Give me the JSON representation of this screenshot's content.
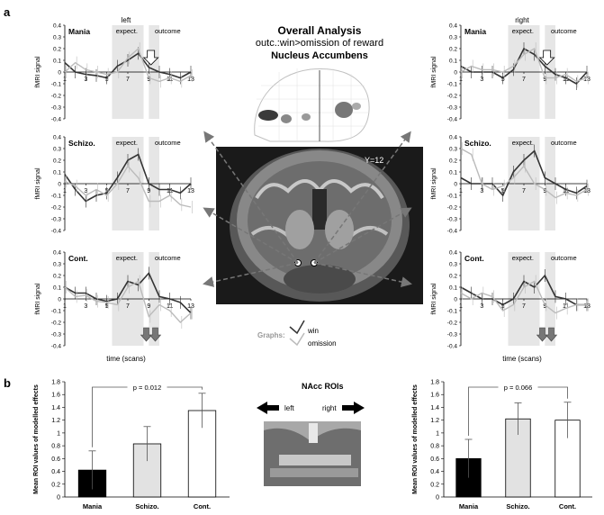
{
  "panel_a_label": "a",
  "panel_b_label": "b",
  "center": {
    "title": "Overall Analysis",
    "subtitle": "outc.:win>omission of reward",
    "region": "Nucleus Accumbens",
    "slice_label": "Y=12",
    "legend_title": "Graphs:",
    "legend_win": "win",
    "legend_omission": "omission",
    "x_axis_title": "time (scans)"
  },
  "side_labels": {
    "left": "left",
    "right": "right"
  },
  "band_labels": {
    "expect": "expect.",
    "outcome": "outcome"
  },
  "line_y_axis": {
    "label": "fMRI signal",
    "ticks": [
      "0.4",
      "0.3",
      "0.2",
      "0.1",
      "0",
      "-0.1",
      "-0.2",
      "-0.3",
      "-0.4"
    ],
    "ylim": [
      -0.4,
      0.4
    ]
  },
  "line_x_ticks": [
    "1",
    "3",
    "5",
    "7",
    "9",
    "11",
    "13"
  ],
  "chart_data": [
    {
      "type": "line",
      "group": "Mania",
      "hemisphere": "left",
      "x": [
        1,
        2,
        3,
        4,
        5,
        6,
        7,
        8,
        9,
        10,
        11,
        12,
        13
      ],
      "series": [
        {
          "name": "win",
          "values": [
            0.08,
            0.0,
            -0.02,
            -0.03,
            -0.05,
            0.05,
            0.1,
            0.16,
            0.04,
            0.0,
            -0.02,
            -0.05,
            0.0
          ]
        },
        {
          "name": "omission",
          "values": [
            0.0,
            0.08,
            0.02,
            0.0,
            -0.02,
            0.0,
            0.12,
            0.2,
            -0.05,
            -0.08,
            -0.05,
            -0.08,
            -0.03
          ]
        }
      ]
    },
    {
      "type": "line",
      "group": "Mania",
      "hemisphere": "right",
      "x": [
        1,
        2,
        3,
        4,
        5,
        6,
        7,
        8,
        9,
        10,
        11,
        12,
        13
      ],
      "series": [
        {
          "name": "win",
          "values": [
            0.05,
            0.0,
            0.0,
            0.0,
            -0.05,
            0.02,
            0.2,
            0.15,
            0.05,
            -0.02,
            -0.05,
            -0.1,
            0.0
          ]
        },
        {
          "name": "omission",
          "values": [
            0.0,
            0.05,
            0.02,
            0.02,
            0.0,
            0.05,
            0.15,
            0.2,
            -0.05,
            -0.05,
            -0.02,
            -0.08,
            -0.05
          ]
        }
      ]
    },
    {
      "type": "line",
      "group": "Schizo.",
      "hemisphere": "left",
      "x": [
        1,
        2,
        3,
        4,
        5,
        6,
        7,
        8,
        9,
        10,
        11,
        12,
        13
      ],
      "series": [
        {
          "name": "win",
          "values": [
            0.08,
            -0.05,
            -0.15,
            -0.1,
            -0.08,
            0.05,
            0.2,
            0.25,
            0.0,
            -0.05,
            -0.05,
            -0.08,
            0.0
          ]
        },
        {
          "name": "omission",
          "values": [
            0.02,
            -0.02,
            -0.1,
            -0.05,
            -0.1,
            0.0,
            0.15,
            0.05,
            -0.15,
            -0.15,
            -0.1,
            -0.18,
            -0.2
          ]
        }
      ]
    },
    {
      "type": "line",
      "group": "Schizo.",
      "hemisphere": "right",
      "x": [
        1,
        2,
        3,
        4,
        5,
        6,
        7,
        8,
        9,
        10,
        11,
        12,
        13
      ],
      "series": [
        {
          "name": "win",
          "values": [
            0.05,
            0.0,
            0.0,
            0.0,
            -0.1,
            0.1,
            0.2,
            0.28,
            0.05,
            0.0,
            -0.05,
            -0.08,
            -0.02
          ]
        },
        {
          "name": "omission",
          "values": [
            0.3,
            0.25,
            0.0,
            -0.05,
            -0.02,
            0.05,
            0.15,
            0.0,
            -0.05,
            -0.12,
            -0.08,
            -0.1,
            -0.05
          ]
        }
      ]
    },
    {
      "type": "line",
      "group": "Cont.",
      "hemisphere": "left",
      "x": [
        1,
        2,
        3,
        4,
        5,
        6,
        7,
        8,
        9,
        10,
        11,
        12,
        13
      ],
      "series": [
        {
          "name": "win",
          "values": [
            0.1,
            0.05,
            0.05,
            0.0,
            -0.02,
            0.0,
            0.15,
            0.12,
            0.22,
            0.02,
            0.0,
            -0.03,
            -0.12
          ]
        },
        {
          "name": "omission",
          "values": [
            0.1,
            0.02,
            0.03,
            -0.02,
            -0.03,
            -0.05,
            0.1,
            0.15,
            -0.15,
            -0.05,
            -0.1,
            -0.2,
            -0.12
          ]
        }
      ]
    },
    {
      "type": "line",
      "group": "Cont.",
      "hemisphere": "right",
      "x": [
        1,
        2,
        3,
        4,
        5,
        6,
        7,
        8,
        9,
        10,
        11,
        12,
        13
      ],
      "series": [
        {
          "name": "win",
          "values": [
            0.1,
            0.05,
            0.0,
            0.0,
            -0.05,
            0.0,
            0.15,
            0.1,
            0.2,
            0.02,
            0.0,
            -0.05,
            -0.05
          ]
        },
        {
          "name": "omission",
          "values": [
            0.05,
            0.0,
            0.05,
            0.02,
            -0.1,
            -0.05,
            0.1,
            0.15,
            -0.05,
            -0.12,
            -0.08,
            -0.05,
            -0.05
          ]
        }
      ]
    },
    {
      "type": "bar",
      "side": "left",
      "categories": [
        "Mania",
        "Schizo.",
        "Cont."
      ],
      "values": [
        0.42,
        0.83,
        1.35
      ],
      "errors": [
        0.3,
        0.27,
        0.27
      ],
      "ylabel": "Mean ROI values of modelled effects",
      "ylim": [
        0,
        1.8
      ],
      "significance": "p = 0.012"
    },
    {
      "type": "bar",
      "side": "right",
      "categories": [
        "Mania",
        "Schizo.",
        "Cont."
      ],
      "values": [
        0.6,
        1.22,
        1.2
      ],
      "errors": [
        0.3,
        0.25,
        0.28
      ],
      "ylabel": "Mean ROI values of modelled effects",
      "ylim": [
        0,
        1.8
      ],
      "significance": "p = 0.066"
    }
  ],
  "bar_y_ticks": [
    "0",
    "0.2",
    "0.4",
    "0.6",
    "0.8",
    "1",
    "1.2",
    "1.4",
    "1.6",
    "1.8"
  ],
  "roi_title": "NAcc ROIs",
  "roi_left": "left",
  "roi_right": "right",
  "colors": {
    "win": "#333333",
    "omission": "#bbbbbb",
    "band": "#e6e6e6",
    "bar_mania": "#000000",
    "bar_schizo": "#e2e2e2",
    "bar_cont": "#ffffff"
  }
}
